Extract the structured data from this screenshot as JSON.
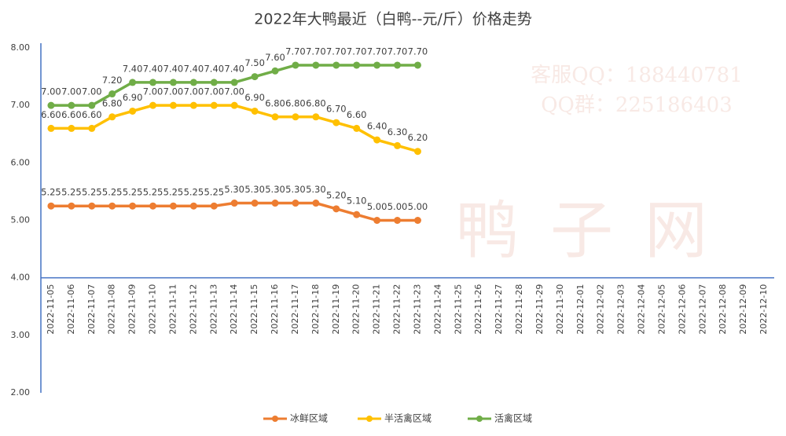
{
  "chart_data": {
    "type": "line",
    "title": "2022年大鸭最近（白鸭--元/斤）价格走势",
    "watermark": [
      "客服QQ：188440781",
      "QQ群：225186403",
      "鸭子网"
    ],
    "categories": [
      "2022-11-05",
      "2022-11-06",
      "2022-11-07",
      "2022-11-08",
      "2022-11-09",
      "2022-11-10",
      "2022-11-11",
      "2022-11-12",
      "2022-11-13",
      "2022-11-14",
      "2022-11-15",
      "2022-11-16",
      "2022-11-17",
      "2022-11-18",
      "2022-11-19",
      "2022-11-20",
      "2022-11-21",
      "2022-11-22",
      "2022-11-23",
      "2022-11-24",
      "2022-11-25",
      "2022-11-26",
      "2022-11-27",
      "2022-11-28",
      "2022-11-29",
      "2022-11-30",
      "2022-12-01",
      "2022-12-02",
      "2022-12-03",
      "2022-12-04",
      "2022-12-05",
      "2022-12-06",
      "2022-12-07",
      "2022-12-08",
      "2022-12-09",
      "2022-12-10"
    ],
    "series": [
      {
        "name": "冰鲜区域",
        "color": "#ed7d31",
        "values": [
          5.25,
          5.25,
          5.25,
          5.25,
          5.25,
          5.25,
          5.25,
          5.25,
          5.25,
          5.3,
          5.3,
          5.3,
          5.3,
          5.3,
          5.2,
          5.1,
          5,
          5,
          5,
          null,
          null,
          null,
          null,
          null,
          null,
          null,
          null,
          null,
          null,
          null,
          null,
          null,
          null,
          null,
          null,
          null
        ],
        "value_labels": [
          "5.25",
          "5.25",
          "5.25",
          "5.25",
          "5.25",
          "5.25",
          "5.25",
          "5.25",
          "5.25",
          "5.30",
          "5.30",
          "5.30",
          "5.30",
          "5.30",
          "5.20",
          "5.10",
          "5.00",
          "5.00",
          "5.00",
          null,
          null,
          null,
          null,
          null,
          null,
          null,
          null,
          null,
          null,
          null,
          null,
          null,
          null,
          null,
          null,
          null
        ]
      },
      {
        "name": "半活禽区域",
        "color": "#ffc000",
        "values": [
          6.6,
          6.6,
          6.6,
          6.8,
          6.9,
          7,
          7,
          7,
          7,
          7,
          6.9,
          6.8,
          6.8,
          6.8,
          6.7,
          6.6,
          6.4,
          6.3,
          6.2,
          null,
          null,
          null,
          null,
          null,
          null,
          null,
          null,
          null,
          null,
          null,
          null,
          null,
          null,
          null,
          null,
          null
        ],
        "value_labels": [
          "6.60",
          "6.60",
          "6.60",
          "6.80",
          "6.90",
          "7.00",
          "7.00",
          "7.00",
          "7.00",
          "7.00",
          "6.90",
          "6.80",
          "6.80",
          "6.80",
          "6.70",
          "6.60",
          "6.40",
          "6.30",
          "6.20",
          null,
          null,
          null,
          null,
          null,
          null,
          null,
          null,
          null,
          null,
          null,
          null,
          null,
          null,
          null,
          null,
          null
        ]
      },
      {
        "name": "活禽区域",
        "color": "#70ad47",
        "values": [
          7,
          7,
          7,
          7.2,
          7.4,
          7.4,
          7.4,
          7.4,
          7.4,
          7.4,
          7.5,
          7.6,
          7.7,
          7.7,
          7.7,
          7.7,
          7.7,
          7.7,
          7.7,
          null,
          null,
          null,
          null,
          null,
          null,
          null,
          null,
          null,
          null,
          null,
          null,
          null,
          null,
          null,
          null,
          null
        ],
        "value_labels": [
          "7.00",
          "7.00",
          "7.00",
          "7.20",
          "7.40",
          "7.40",
          "7.40",
          "7.40",
          "7.40",
          "7.40",
          "7.50",
          "7.60",
          "7.70",
          "7.70",
          "7.70",
          "7.70",
          "7.70",
          "7.70",
          "7.70",
          null,
          null,
          null,
          null,
          null,
          null,
          null,
          null,
          null,
          null,
          null,
          null,
          null,
          null,
          null,
          null,
          null
        ]
      }
    ],
    "ylim": [
      2,
      8
    ],
    "yticks": [
      {
        "value": 2,
        "label": "2.00"
      },
      {
        "value": 3,
        "label": "3.00"
      },
      {
        "value": 4,
        "label": "4.00"
      },
      {
        "value": 5,
        "label": "5.00"
      },
      {
        "value": 6,
        "label": "6.00"
      },
      {
        "value": 7,
        "label": "7.00"
      },
      {
        "value": 8,
        "label": "8.00"
      }
    ],
    "x_axis_at": 4,
    "grid": false,
    "legend": "bottom"
  }
}
